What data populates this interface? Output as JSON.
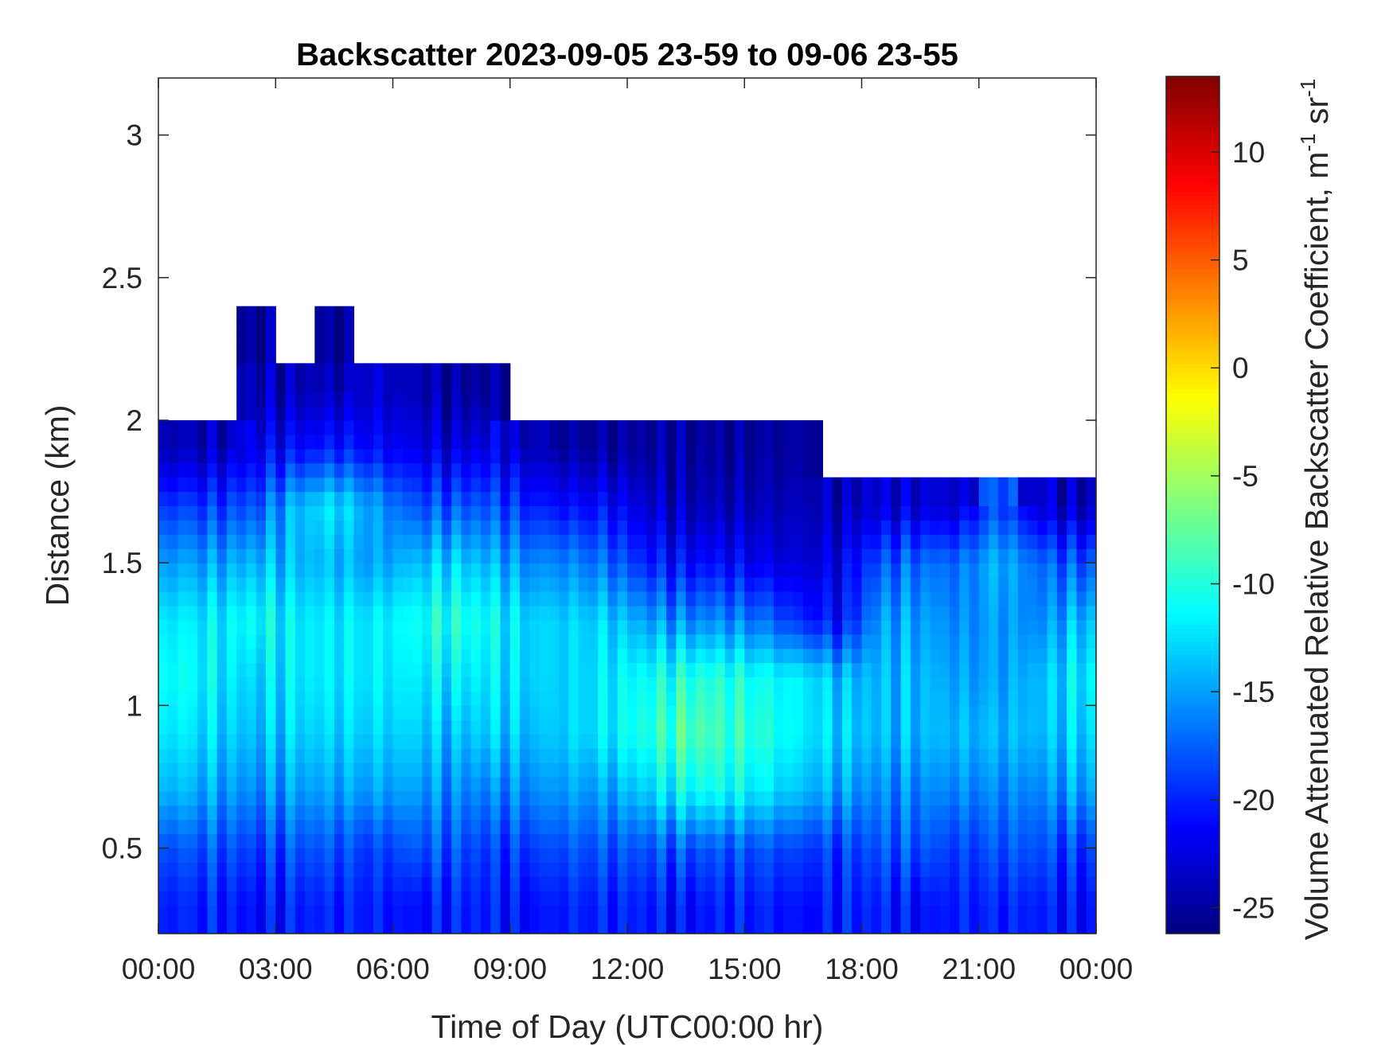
{
  "chart_data": {
    "type": "heatmap",
    "title": "Backscatter 2023-09-05 23-59 to 09-06 23-55",
    "xlabel": "Time of Day (UTC00:00 hr)",
    "ylabel": "Distance (km)",
    "xlim": [
      0,
      24
    ],
    "ylim": [
      0.2,
      3.2
    ],
    "x_ticks": [
      0,
      3,
      6,
      9,
      12,
      15,
      18,
      21,
      24
    ],
    "x_tick_labels": [
      "00:00",
      "03:00",
      "06:00",
      "09:00",
      "12:00",
      "15:00",
      "18:00",
      "21:00",
      "00:00"
    ],
    "y_ticks": [
      0.5,
      1,
      1.5,
      2,
      2.5,
      3
    ],
    "y_tick_labels": [
      "0.5",
      "1",
      "1.5",
      "2",
      "2.5",
      "3"
    ],
    "colormap": "jet",
    "colorbar": {
      "label": "Volume Attenuated Relative Backscatter Coefficient, m",
      "label_sup1": "-1",
      "label_mid": " sr",
      "label_sup2": "-1",
      "clim": [
        -26.2,
        13.5
      ],
      "ticks": [
        10,
        5,
        0,
        -5,
        -10,
        -15,
        -20,
        -25
      ],
      "tick_labels": [
        "10",
        "5",
        "0",
        "-5",
        "-10",
        "-15",
        "-20",
        "-25"
      ]
    },
    "x_hours": [
      0.5,
      1.5,
      2.5,
      3.5,
      4.5,
      5.5,
      6.5,
      7.5,
      8.5,
      9.5,
      10.5,
      11.5,
      12.5,
      13.5,
      14.5,
      15.5,
      16.5,
      17.5,
      18.5,
      19.5,
      20.5,
      21.5,
      22.5,
      23.5
    ],
    "y_km": [
      0.3,
      0.5,
      0.7,
      0.9,
      1.1,
      1.3,
      1.5,
      1.7,
      1.9,
      2.1,
      2.3,
      2.5,
      2.7,
      2.9,
      3.1
    ],
    "values": [
      [
        -20,
        -20,
        -21,
        -20,
        -20,
        -20,
        -21,
        -20,
        -20,
        -21,
        -20,
        -20,
        -20,
        -21,
        -20,
        -20,
        -21,
        -20,
        -20,
        -21,
        -20,
        -20,
        -20,
        -21
      ],
      [
        -18,
        -18,
        -19,
        -18,
        -18,
        -19,
        -18,
        -18,
        -19,
        -19,
        -18,
        -18,
        -18,
        -18,
        -18,
        -18,
        -19,
        -19,
        -18,
        -18,
        -19,
        -18,
        -18,
        -19
      ],
      [
        -14,
        -15,
        -16,
        -15,
        -15,
        -15,
        -15,
        -16,
        -16,
        -16,
        -15,
        -15,
        -13,
        -11,
        -11,
        -12,
        -14,
        -15,
        -16,
        -16,
        -16,
        -16,
        -16,
        -15
      ],
      [
        -12,
        -13,
        -14,
        -13,
        -13,
        -13,
        -13,
        -14,
        -13,
        -14,
        -13,
        -12,
        -10,
        -8,
        -9,
        -10,
        -12,
        -13,
        -14,
        -14,
        -14,
        -14,
        -14,
        -13
      ],
      [
        -11,
        -12,
        -13,
        -12,
        -12,
        -12,
        -12,
        -12,
        -12,
        -13,
        -13,
        -12,
        -11,
        -10,
        -10,
        -11,
        -12,
        -14,
        -14,
        -14,
        -15,
        -15,
        -14,
        -12
      ],
      [
        -12,
        -12,
        -11,
        -12,
        -12,
        -12,
        -11,
        -10,
        -11,
        -13,
        -13,
        -13,
        -15,
        -16,
        -16,
        -17,
        -20,
        -21,
        -15,
        -15,
        -16,
        -15,
        -16,
        -14
      ],
      [
        -15,
        -15,
        -14,
        -14,
        -14,
        -15,
        -14,
        -13,
        -14,
        -16,
        -16,
        -17,
        -20,
        -21,
        -21,
        -22,
        -23,
        -22,
        -18,
        -17,
        -17,
        -14,
        -17,
        -18
      ],
      [
        -19,
        -19,
        -18,
        -14,
        -12,
        -15,
        -18,
        -18,
        -18,
        -20,
        -21,
        -21,
        -23,
        -24,
        -24,
        -24,
        -24,
        -24,
        -23,
        -23,
        -23,
        -18,
        -23,
        -24
      ],
      [
        -24,
        -24,
        -22,
        -21,
        -20,
        -21,
        -22,
        -23,
        -22,
        -24,
        -25,
        -25,
        -25,
        -25,
        -25,
        -25,
        -25,
        null,
        null,
        null,
        null,
        null,
        null,
        null
      ],
      [
        null,
        null,
        -24,
        -24,
        -24,
        -23,
        -24,
        -25,
        -25,
        null,
        null,
        null,
        null,
        null,
        null,
        null,
        null,
        null,
        null,
        null,
        null,
        null,
        null,
        null
      ],
      [
        null,
        null,
        -25,
        null,
        -25,
        null,
        null,
        null,
        null,
        null,
        null,
        null,
        null,
        null,
        null,
        null,
        null,
        null,
        null,
        null,
        null,
        null,
        null,
        null
      ],
      [
        null,
        null,
        null,
        null,
        null,
        null,
        null,
        null,
        null,
        null,
        null,
        null,
        null,
        null,
        null,
        null,
        null,
        null,
        null,
        null,
        null,
        null,
        null,
        null
      ],
      [
        null,
        null,
        null,
        null,
        null,
        null,
        null,
        null,
        null,
        null,
        null,
        null,
        null,
        null,
        null,
        null,
        null,
        null,
        null,
        null,
        null,
        null,
        null,
        null
      ],
      [
        null,
        null,
        null,
        null,
        null,
        null,
        null,
        null,
        null,
        null,
        null,
        null,
        null,
        null,
        null,
        null,
        null,
        null,
        null,
        null,
        null,
        null,
        null,
        null
      ],
      [
        null,
        null,
        null,
        null,
        null,
        null,
        null,
        null,
        null,
        null,
        null,
        null,
        null,
        null,
        null,
        null,
        null,
        null,
        null,
        null,
        null,
        null,
        null,
        null
      ]
    ]
  }
}
